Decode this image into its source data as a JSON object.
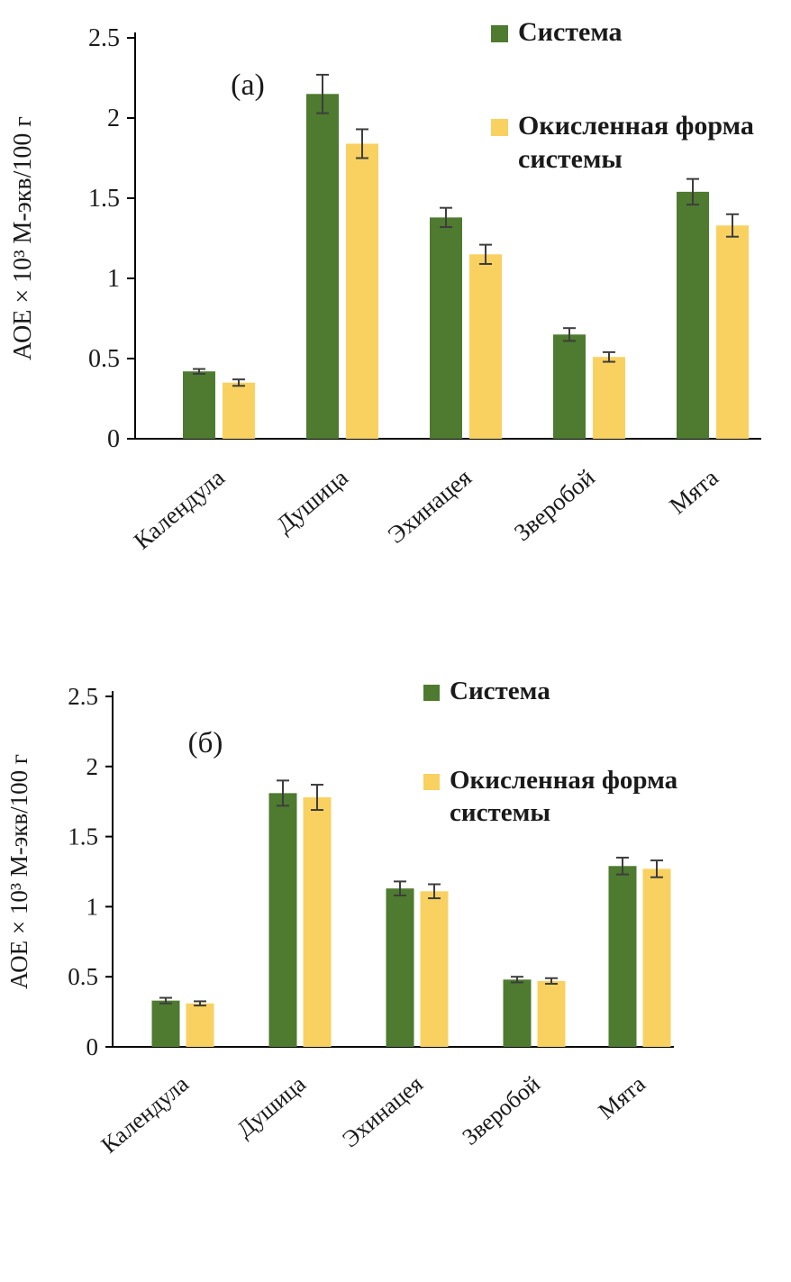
{
  "page": {
    "background": "#ffffff"
  },
  "chart_data": [
    {
      "type": "bar",
      "panel_label": "(а)",
      "ylabel": "АОЕ × 10³ М-экв/100 г",
      "xlabel": "",
      "ylim": [
        0,
        2.5
      ],
      "yticks": [
        0,
        0.5,
        1,
        1.5,
        2,
        2.5
      ],
      "grid": false,
      "legend_position": "top-right",
      "error_bar_color": "#3d3d3d",
      "categories": [
        "Календула",
        "Душица",
        "Эхинацея",
        "Зверобой",
        "Мята"
      ],
      "series": [
        {
          "name": "Система",
          "legend_lines": [
            "Система"
          ],
          "color": "#4e7b2f",
          "values": [
            0.42,
            2.15,
            1.38,
            0.65,
            1.54
          ],
          "errors": [
            0.015,
            0.12,
            0.06,
            0.04,
            0.08
          ]
        },
        {
          "name": "Окисленная форма системы",
          "legend_lines": [
            "Окисленная форма",
            "системы"
          ],
          "color": "#f9d160",
          "values": [
            0.35,
            1.84,
            1.15,
            0.51,
            1.33
          ],
          "errors": [
            0.02,
            0.09,
            0.06,
            0.03,
            0.07
          ]
        }
      ]
    },
    {
      "type": "bar",
      "panel_label": "(б)",
      "ylabel": "АОЕ × 10³ М-экв/100 г",
      "xlabel": "",
      "ylim": [
        0,
        2.5
      ],
      "yticks": [
        0,
        0.5,
        1,
        1.5,
        2,
        2.5
      ],
      "grid": false,
      "legend_position": "top-right",
      "error_bar_color": "#3d3d3d",
      "categories": [
        "Календула",
        "Душица",
        "Эхинацея",
        "Зверобой",
        "Мята"
      ],
      "series": [
        {
          "name": "Система",
          "legend_lines": [
            "Система"
          ],
          "color": "#4e7b2f",
          "values": [
            0.33,
            1.81,
            1.13,
            0.48,
            1.29
          ],
          "errors": [
            0.02,
            0.09,
            0.05,
            0.02,
            0.06
          ]
        },
        {
          "name": "Окисленная форма системы",
          "legend_lines": [
            "Окисленная форма",
            "системы"
          ],
          "color": "#f9d160",
          "values": [
            0.31,
            1.78,
            1.11,
            0.47,
            1.27
          ],
          "errors": [
            0.015,
            0.09,
            0.05,
            0.02,
            0.06
          ]
        }
      ]
    }
  ]
}
